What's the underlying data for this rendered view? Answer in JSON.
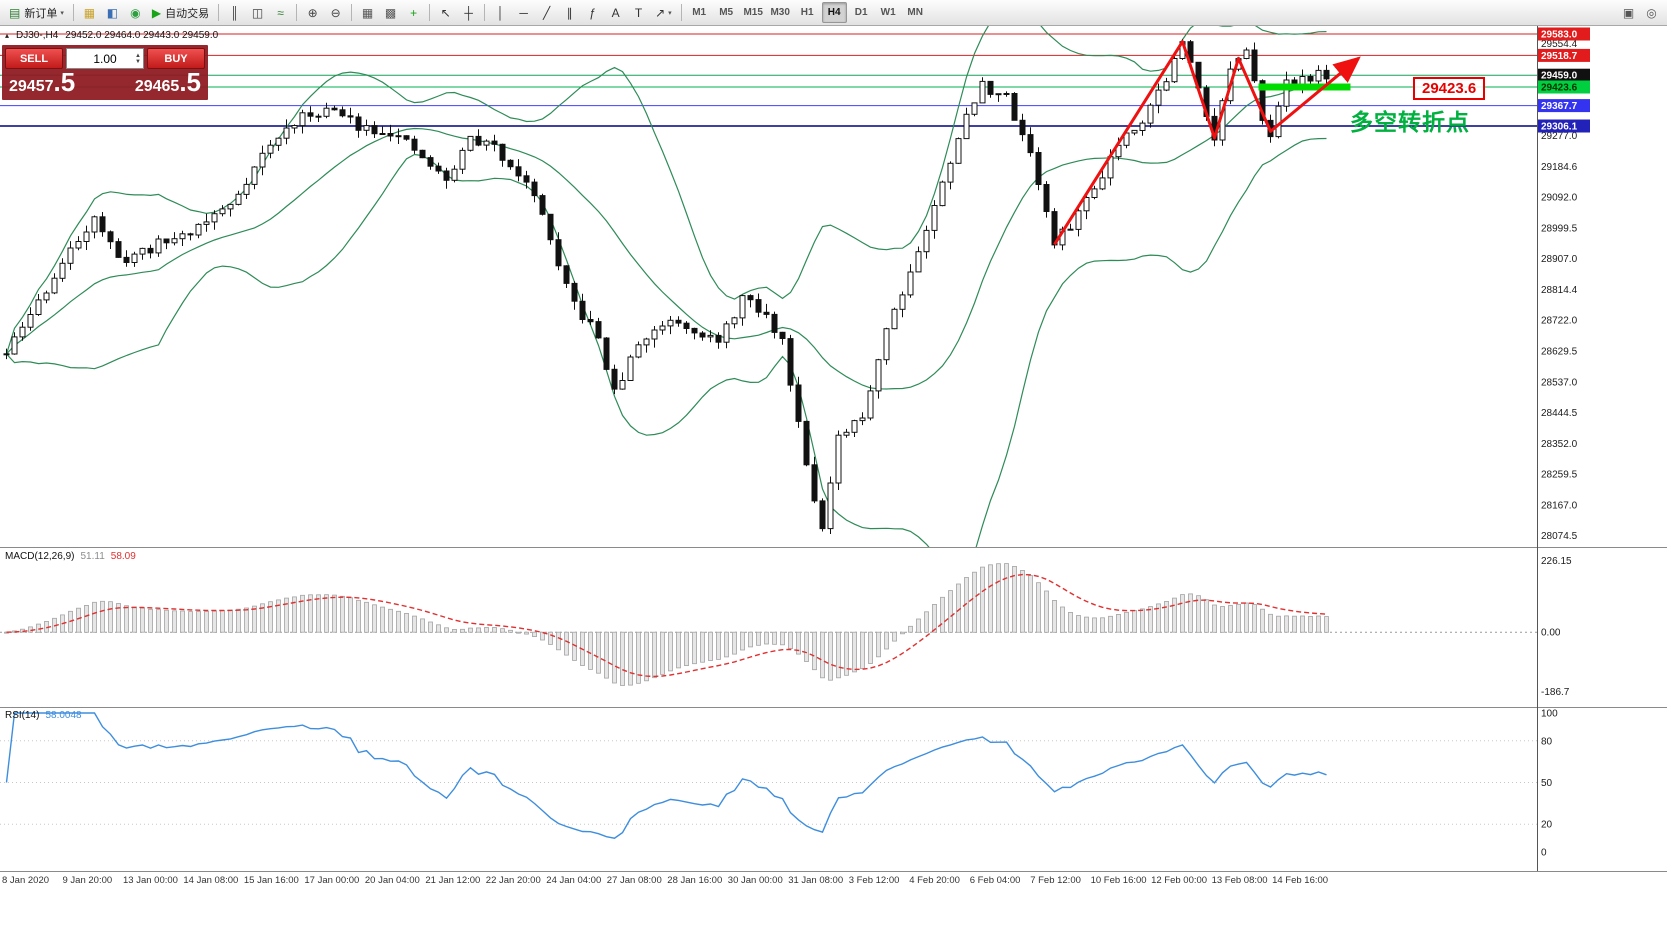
{
  "icons": {
    "caret_down": "▾",
    "spinner_up": "▲",
    "spinner_down": "▼",
    "symbol_marker": "▴"
  },
  "toolbar": {
    "items": [
      {
        "name": "new-order-button",
        "glyph": "▤",
        "color": "#2e7d32",
        "label": "新订单",
        "caret": true
      },
      {
        "type": "sep"
      },
      {
        "name": "market-watch-button",
        "glyph": "▦",
        "color": "#c9a227"
      },
      {
        "name": "data-window-button",
        "glyph": "◧",
        "color": "#3b6fb5"
      },
      {
        "name": "navigator-button",
        "glyph": "◉",
        "color": "#2e9e3e"
      },
      {
        "name": "auto-trading-button",
        "glyph": "▶",
        "color": "#18a318",
        "label": "自动交易"
      },
      {
        "type": "sep"
      },
      {
        "name": "bar-chart-button",
        "glyph": "║",
        "color": "#444444"
      },
      {
        "name": "candlestick-chart-button",
        "glyph": "◫",
        "color": "#444444"
      },
      {
        "name": "line-chart-button",
        "glyph": "≈",
        "color": "#2e7d32"
      },
      {
        "type": "sep"
      },
      {
        "name": "zoom-in-button",
        "glyph": "⊕",
        "color": "#444444"
      },
      {
        "name": "zoom-out-button",
        "glyph": "⊖",
        "color": "#444444"
      },
      {
        "type": "sep"
      },
      {
        "name": "tile-windows-button",
        "glyph": "▦",
        "color": "#555555"
      },
      {
        "name": "cascade-windows-button",
        "glyph": "▩",
        "color": "#555555"
      },
      {
        "name": "indicators-button",
        "glyph": "+",
        "color": "#18a318"
      },
      {
        "type": "sep"
      },
      {
        "name": "cursor-tool-button",
        "glyph": "↖",
        "color": "#333333"
      },
      {
        "name": "crosshair-tool-button",
        "glyph": "┼",
        "color": "#333333"
      },
      {
        "type": "sep"
      },
      {
        "name": "vertical-line-tool-button",
        "glyph": "│",
        "color": "#333333"
      },
      {
        "name": "horizontal-line-tool-button",
        "glyph": "─",
        "color": "#333333"
      },
      {
        "name": "trendline-tool-button",
        "glyph": "╱",
        "color": "#333333"
      },
      {
        "name": "channel-tool-button",
        "glyph": "∥",
        "color": "#333333"
      },
      {
        "name": "fibonacci-tool-button",
        "glyph": "ƒ",
        "color": "#333333"
      },
      {
        "name": "text-tool-button",
        "glyph": "A",
        "color": "#333333"
      },
      {
        "name": "label-tool-button",
        "glyph": "T",
        "color": "#333333"
      },
      {
        "name": "arrows-tool-button",
        "glyph": "↗",
        "color": "#333333",
        "caret": true
      },
      {
        "type": "sep"
      }
    ],
    "timeframes": [
      "M1",
      "M5",
      "M15",
      "M30",
      "H1",
      "H4",
      "D1",
      "W1",
      "MN"
    ],
    "active_timeframe": "H4",
    "right_items": [
      {
        "name": "window-list-button",
        "glyph": "▣",
        "color": "#555555"
      },
      {
        "name": "search-button",
        "glyph": "◎",
        "color": "#555555"
      }
    ]
  },
  "quote_line": {
    "symbol_period": "DJ30-,H4",
    "ohlc": "29452.0 29464.0 29443.0 29459.0"
  },
  "trade_panel": {
    "sell_label": "SELL",
    "buy_label": "BUY",
    "volume": "1.00",
    "sell_price_small": "29457",
    "sell_price_big": ".5",
    "buy_price_small": "29465",
    "buy_price_big": ".5"
  },
  "annotations": {
    "price_tag": "29423.6",
    "turning_point_label": "多空转折点"
  },
  "time_axis": [
    "8 Jan 2020",
    "9 Jan 20:00",
    "13 Jan 00:00",
    "14 Jan 08:00",
    "15 Jan 16:00",
    "17 Jan 00:00",
    "20 Jan 04:00",
    "21 Jan 12:00",
    "22 Jan 20:00",
    "24 Jan 04:00",
    "27 Jan 08:00",
    "28 Jan 16:00",
    "30 Jan 00:00",
    "31 Jan 08:00",
    "3 Feb 12:00",
    "4 Feb 20:00",
    "6 Feb 04:00",
    "7 Feb 12:00",
    "10 Feb 16:00",
    "12 Feb 00:00",
    "13 Feb 08:00",
    "14 Feb 16:00"
  ],
  "chart_data": {
    "type": "candlestick",
    "symbol": "DJ30-",
    "period": "H4",
    "quote": {
      "open": 29452.0,
      "high": 29464.0,
      "low": 29443.0,
      "close": 29459.0
    },
    "bid": 29459.0,
    "sell": 29457.5,
    "buy": 29465.5,
    "bars": 166,
    "seed": 11,
    "noise": 34,
    "wick": 26,
    "price_range_top": 29607,
    "price_range_bottom": 28040,
    "anchors": [
      [
        0,
        28620
      ],
      [
        3,
        28740
      ],
      [
        7,
        28890
      ],
      [
        11,
        29040
      ],
      [
        14,
        28900
      ],
      [
        18,
        28940
      ],
      [
        23,
        28990
      ],
      [
        28,
        29070
      ],
      [
        32,
        29220
      ],
      [
        36,
        29320
      ],
      [
        40,
        29360
      ],
      [
        44,
        29310
      ],
      [
        48,
        29290
      ],
      [
        52,
        29210
      ],
      [
        55,
        29140
      ],
      [
        58,
        29270
      ],
      [
        61,
        29240
      ],
      [
        64,
        29170
      ],
      [
        67,
        29050
      ],
      [
        69,
        28870
      ],
      [
        71,
        28770
      ],
      [
        74,
        28670
      ],
      [
        76,
        28500
      ],
      [
        79,
        28650
      ],
      [
        83,
        28730
      ],
      [
        86,
        28700
      ],
      [
        89,
        28650
      ],
      [
        92,
        28790
      ],
      [
        95,
        28730
      ],
      [
        97,
        28660
      ],
      [
        100,
        28300
      ],
      [
        102,
        28090
      ],
      [
        104,
        28360
      ],
      [
        107,
        28430
      ],
      [
        110,
        28700
      ],
      [
        113,
        28870
      ],
      [
        116,
        29060
      ],
      [
        119,
        29280
      ],
      [
        122,
        29430
      ],
      [
        125,
        29390
      ],
      [
        128,
        29230
      ],
      [
        131,
        28950
      ],
      [
        133,
        29010
      ],
      [
        136,
        29120
      ],
      [
        139,
        29260
      ],
      [
        142,
        29330
      ],
      [
        145,
        29450
      ],
      [
        147,
        29555
      ],
      [
        149,
        29430
      ],
      [
        151,
        29270
      ],
      [
        153,
        29480
      ],
      [
        155,
        29520
      ],
      [
        157,
        29340
      ],
      [
        158,
        29290
      ],
      [
        160,
        29430
      ],
      [
        162,
        29455
      ],
      [
        165,
        29460
      ]
    ],
    "bollinger": {
      "period": 20,
      "deviation": 2,
      "color": "#2E8B57"
    },
    "y_ticks": [
      29554.4,
      29277.0,
      29184.6,
      29092.0,
      28999.5,
      28907.0,
      28814.4,
      28722.0,
      28629.5,
      28537.0,
      28444.5,
      28352.0,
      28259.5,
      28167.0,
      28074.5
    ],
    "level_labels": [
      {
        "price": 29583.0,
        "bg": "#e21c1c",
        "fg": "#ffffff"
      },
      {
        "price": 29518.7,
        "bg": "#e21c1c",
        "fg": "#ffffff"
      },
      {
        "price": 29459.0,
        "bg": "#111111",
        "fg": "#ffffff"
      },
      {
        "price": 29423.6,
        "bg": "#00cf40",
        "fg": "#003300"
      },
      {
        "price": 29367.7,
        "bg": "#3434f0",
        "fg": "#ffffff"
      },
      {
        "price": 29306.1,
        "bg": "#2222b8",
        "fg": "#ffffff"
      }
    ],
    "h_lines": [
      {
        "price": 29583.0,
        "color": "#d62222",
        "width": 1
      },
      {
        "price": 29518.7,
        "color": "#d62222",
        "width": 1
      },
      {
        "price": 29459.0,
        "color": "#17a05a",
        "width": 1
      },
      {
        "price": 29423.6,
        "color": "#00b050",
        "width": 1
      },
      {
        "price": 29367.7,
        "color": "#4040ff",
        "width": 1
      },
      {
        "price": 29306.1,
        "color": "#000080",
        "width": 1.5
      }
    ],
    "support_highlight": {
      "i0": 156.5,
      "i1": 168,
      "price": 29423.6,
      "color": "#00dc00"
    },
    "trend_arrow": {
      "color": "#ef1010",
      "points": [
        [
          131,
          28950
        ],
        [
          147,
          29560
        ],
        [
          151,
          29270
        ],
        [
          154,
          29510
        ],
        [
          158,
          29290
        ],
        [
          169,
          29510
        ]
      ]
    },
    "macd": {
      "name": "MACD(12,26,9)",
      "value_main": "51.11",
      "value_signal": "58.09",
      "fast": 12,
      "slow": 26,
      "signal": 9,
      "axis": [
        {
          "v": 226.15,
          "t": "226.15"
        },
        {
          "v": 0,
          "t": "0.00"
        },
        {
          "v": -186.7,
          "t": "-186.7"
        }
      ],
      "hist_fill": "#e6e6e6",
      "hist_stroke": "#a3a3a3",
      "signal_color": "#e03030"
    },
    "rsi": {
      "name": "RSI(14)",
      "value": "58.0048",
      "period": 14,
      "axis": [
        100,
        80,
        50,
        20,
        0
      ],
      "levels": [
        80,
        50,
        20
      ],
      "color": "#3e8ede"
    }
  }
}
